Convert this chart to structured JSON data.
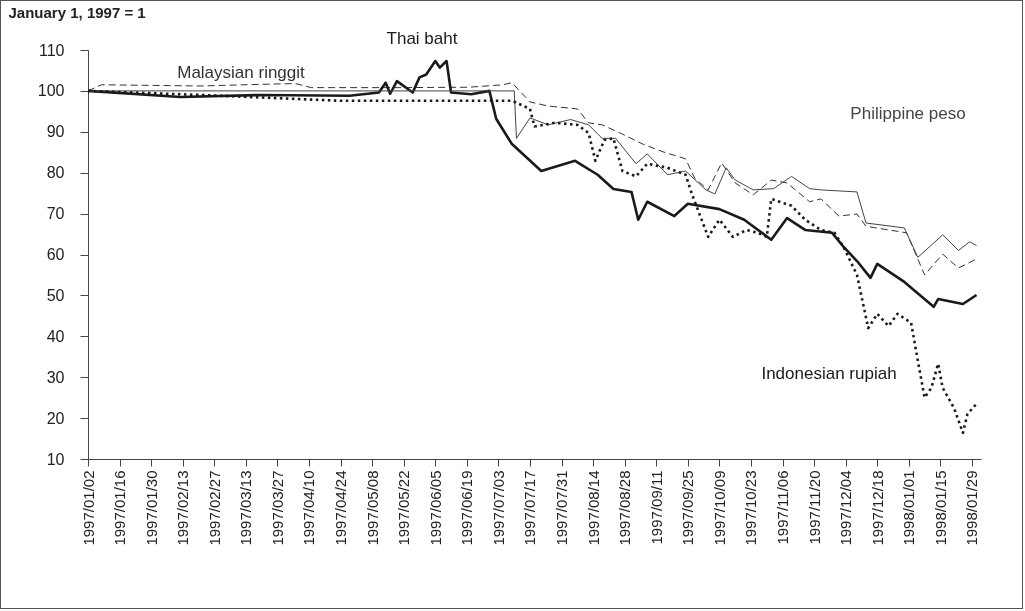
{
  "chart_data": {
    "type": "line",
    "ylabel": "January 1, 1997 = 1",
    "xlim": [
      "1997-01-02",
      "1998-02-02"
    ],
    "ylim": [
      10,
      110
    ],
    "yticks": [
      10,
      20,
      30,
      40,
      50,
      60,
      70,
      80,
      90,
      100,
      110
    ],
    "xticks": [
      {
        "value": "1997-01-02",
        "label": "1997/01/02"
      },
      {
        "value": "1997-01-16",
        "label": "1997/01/16"
      },
      {
        "value": "1997-01-30",
        "label": "1997/01/30"
      },
      {
        "value": "1997-02-13",
        "label": "1997/02/13"
      },
      {
        "value": "1997-02-27",
        "label": "1997/02/27"
      },
      {
        "value": "1997-03-13",
        "label": "1997/03/13"
      },
      {
        "value": "1997-03-27",
        "label": "1997/03/27"
      },
      {
        "value": "1997-04-10",
        "label": "1997/04/10"
      },
      {
        "value": "1997-04-24",
        "label": "1997/04/24"
      },
      {
        "value": "1997-05-08",
        "label": "1997/05/08"
      },
      {
        "value": "1997-05-22",
        "label": "1997/05/22"
      },
      {
        "value": "1997-06-05",
        "label": "1997/06/05"
      },
      {
        "value": "1997-06-19",
        "label": "1997/06/19"
      },
      {
        "value": "1997-07-03",
        "label": "1997/07/03"
      },
      {
        "value": "1997-07-17",
        "label": "1997/07/17"
      },
      {
        "value": "1997-07-31",
        "label": "1997/07/31"
      },
      {
        "value": "1997-08-14",
        "label": "1997/08/14"
      },
      {
        "value": "1997-08-28",
        "label": "1997/08/28"
      },
      {
        "value": "1997-09-11",
        "label": "1997/09/11"
      },
      {
        "value": "1997-09-25",
        "label": "1997/09/25"
      },
      {
        "value": "1997-10-09",
        "label": "1997/10/09"
      },
      {
        "value": "1997-10-23",
        "label": "1997/10/23"
      },
      {
        "value": "1997-11-06",
        "label": "1997/11/06"
      },
      {
        "value": "1997-11-20",
        "label": "1997/11/20"
      },
      {
        "value": "1997-12-04",
        "label": "1997/12/04"
      },
      {
        "value": "1997-12-18",
        "label": "1997/12/18"
      },
      {
        "value": "1998-01-01",
        "label": "1998/01/01"
      },
      {
        "value": "1998-01-15",
        "label": "1998/01/15"
      },
      {
        "value": "1998-01-29",
        "label": "1998/01/29"
      }
    ],
    "series": [
      {
        "name": "Malaysian ringgit",
        "color": "#333333",
        "line_style": "dashed",
        "x": [
          "1997-01-02",
          "1997-01-08",
          "1997-02-21",
          "1997-03-19",
          "1997-04-04",
          "1997-04-11",
          "1997-05-20",
          "1997-06-20",
          "1997-07-05",
          "1997-07-09",
          "1997-07-17",
          "1997-07-25",
          "1997-08-07",
          "1997-08-12",
          "1997-08-18",
          "1997-08-26",
          "1997-09-05",
          "1997-09-14",
          "1997-09-24",
          "1997-09-28",
          "1997-10-04",
          "1997-10-10",
          "1997-10-16",
          "1997-10-24",
          "1997-11-01",
          "1997-11-08",
          "1997-11-18",
          "1997-11-23",
          "1997-12-01",
          "1997-12-09",
          "1997-12-13",
          "1997-12-31",
          "1998-01-08",
          "1998-01-16",
          "1998-01-23",
          "1998-01-31"
        ],
        "values": [
          100,
          101.5,
          101.2,
          101.6,
          101.8,
          100.8,
          100.8,
          100.9,
          101.5,
          102,
          97.3,
          96.3,
          95.6,
          92.2,
          91.7,
          89.7,
          87,
          85.1,
          83.4,
          78.7,
          75.8,
          82.4,
          77.5,
          74.6,
          78.2,
          77.5,
          72.9,
          73.6,
          69.4,
          69.9,
          66.9,
          65.3,
          55,
          60.1,
          56.7,
          58.9
        ]
      },
      {
        "name": "Thai baht",
        "color": "#1a1a1a",
        "line_style": "solid",
        "x": [
          "1997-01-02",
          "1997-02-12",
          "1997-03-19",
          "1997-04-28",
          "1997-05-11",
          "1997-05-14",
          "1997-05-16",
          "1997-05-19",
          "1997-05-26",
          "1997-05-29",
          "1997-06-01",
          "1997-06-05",
          "1997-06-07",
          "1997-06-10",
          "1997-06-12",
          "1997-06-21",
          "1997-06-29",
          "1997-07-02",
          "1997-07-09",
          "1997-07-22",
          "1997-08-06",
          "1997-08-16",
          "1997-08-23",
          "1997-08-31",
          "1997-09-03",
          "1997-09-07",
          "1997-09-19",
          "1997-09-25",
          "1997-10-09",
          "1997-10-20",
          "1997-11-01",
          "1997-11-08",
          "1997-11-16",
          "1997-11-28",
          "1997-12-03",
          "1997-12-09",
          "1997-12-15",
          "1997-12-18",
          "1997-12-30",
          "1998-01-12",
          "1998-01-14",
          "1998-01-25",
          "1998-01-31"
        ],
        "values": [
          100,
          98.5,
          99,
          98.8,
          99.6,
          102,
          99.3,
          102.4,
          99.6,
          103.3,
          104,
          107.3,
          105.7,
          107.3,
          99.6,
          99.2,
          100,
          93.2,
          87,
          80.4,
          82.9,
          79.5,
          76,
          75.3,
          68.5,
          72.9,
          69.4,
          72.4,
          71.1,
          68.5,
          63.6,
          68.9,
          66,
          65.3,
          61.9,
          58.4,
          54.3,
          57.7,
          53.3,
          47.2,
          49.1,
          47.9,
          50.1
        ]
      },
      {
        "name": "Philippine peso",
        "color": "#444444",
        "line_style": "solid",
        "x": [
          "1997-01-02",
          "1997-07-10",
          "1997-07-11",
          "1997-07-17",
          "1997-07-25",
          "1997-08-04",
          "1997-08-12",
          "1997-08-18",
          "1997-08-24",
          "1997-09-02",
          "1997-09-07",
          "1997-09-16",
          "1997-09-24",
          "1997-10-03",
          "1997-10-07",
          "1997-10-12",
          "1997-10-16",
          "1997-10-24",
          "1997-11-02",
          "1997-11-10",
          "1997-11-18",
          "1997-11-23",
          "1997-12-09",
          "1997-12-13",
          "1997-12-30",
          "1998-01-05",
          "1998-01-16",
          "1998-01-23",
          "1998-01-28",
          "1998-01-31"
        ],
        "values": [
          100,
          100,
          88.4,
          93.4,
          91.7,
          93,
          91.7,
          88.4,
          88.4,
          82.2,
          84.6,
          79.5,
          80.4,
          75.8,
          74.8,
          81.2,
          78.2,
          75.8,
          76.1,
          79.1,
          76.1,
          75.8,
          75.3,
          67.7,
          66.5,
          59.3,
          64.8,
          61,
          63.1,
          62.2
        ]
      },
      {
        "name": "Indonesian rupiah",
        "color": "#1a1a1a",
        "line_style": "dotted",
        "x": [
          "1997-01-02",
          "1997-02-21",
          "1997-04-23",
          "1997-06-27",
          "1997-07-09",
          "1997-07-17",
          "1997-07-19",
          "1997-07-28",
          "1997-08-07",
          "1997-08-12",
          "1997-08-15",
          "1997-08-19",
          "1997-08-23",
          "1997-08-27",
          "1997-09-02",
          "1997-09-07",
          "1997-09-16",
          "1997-09-24",
          "1997-09-27",
          "1997-10-04",
          "1997-10-09",
          "1997-10-15",
          "1997-10-21",
          "1997-10-26",
          "1997-10-30",
          "1997-11-01",
          "1997-11-10",
          "1997-11-16",
          "1997-11-23",
          "1997-11-29",
          "1997-12-03",
          "1997-12-09",
          "1997-12-14",
          "1997-12-18",
          "1997-12-23",
          "1997-12-27",
          "1998-01-02",
          "1998-01-05",
          "1998-01-08",
          "1998-01-11",
          "1998-01-14",
          "1998-01-16",
          "1998-01-21",
          "1998-01-25",
          "1998-01-27",
          "1998-01-31"
        ],
        "values": [
          100,
          99,
          97.6,
          97.6,
          97.6,
          95.6,
          91.3,
          92.2,
          91.7,
          89.7,
          82.9,
          88,
          88.4,
          80.4,
          79.1,
          82.2,
          81.2,
          79.5,
          74.5,
          64.3,
          68.5,
          64.3,
          66,
          65.3,
          64.3,
          73.6,
          71.9,
          68.5,
          66,
          65.3,
          61.9,
          55,
          42,
          45.5,
          42.5,
          45.5,
          43.3,
          34,
          25,
          27.4,
          33.3,
          27.4,
          22.5,
          16.4,
          21,
          23.5
        ]
      }
    ]
  }
}
